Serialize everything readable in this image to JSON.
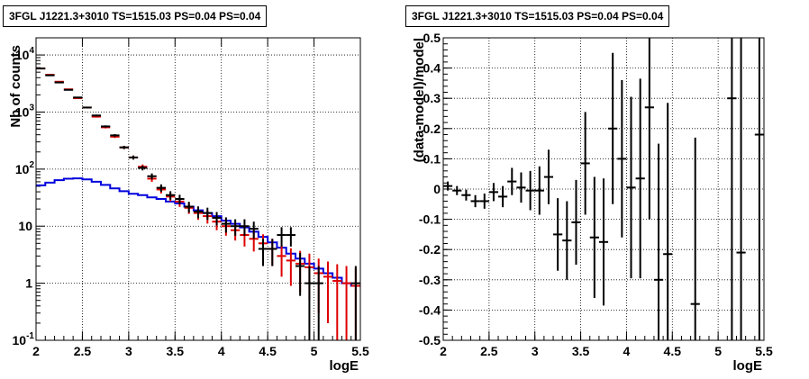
{
  "chart_data": [
    {
      "type": "line",
      "title": "3FGL J1221.3+3010 TS=1515.03 PS=0.04 PS=0.04",
      "xlabel": "logE",
      "ylabel": "Nb of counts",
      "xlim": [
        2,
        5.5
      ],
      "ylim": [
        0.1,
        20000
      ],
      "yscale": "log",
      "grid": true,
      "x_ticks": [
        "2",
        "2.5",
        "3",
        "3.5",
        "4",
        "4.5",
        "5",
        "5.5"
      ],
      "y_ticks": [
        {
          "value": 0.1,
          "label": "10",
          "sup": "-1"
        },
        {
          "value": 1,
          "label": "1",
          "sup": ""
        },
        {
          "value": 10,
          "label": "10",
          "sup": ""
        },
        {
          "value": 100,
          "label": "10",
          "sup": "2"
        },
        {
          "value": 1000,
          "label": "10",
          "sup": "3"
        },
        {
          "value": 10000,
          "label": "10",
          "sup": "4"
        }
      ],
      "bin_width": 0.1,
      "series": [
        {
          "role": "data",
          "color": "#000000",
          "x": [
            2.05,
            2.15,
            2.25,
            2.35,
            2.45,
            2.55,
            2.65,
            2.75,
            2.85,
            2.95,
            3.05,
            3.15,
            3.25,
            3.35,
            3.45,
            3.55,
            3.65,
            3.75,
            3.85,
            3.95,
            4.05,
            4.15,
            4.25,
            4.35,
            4.45,
            4.55,
            4.65,
            4.75,
            4.85,
            4.95,
            5.05,
            5.15,
            5.25,
            5.35,
            5.45
          ],
          "y": [
            5800,
            4400,
            3300,
            2450,
            1800,
            1200,
            870,
            560,
            390,
            240,
            160,
            105,
            75,
            47,
            35,
            30,
            22,
            18,
            17,
            14,
            11,
            10,
            10,
            9,
            4,
            4,
            7,
            7,
            2,
            1,
            1,
            null,
            null,
            null,
            1
          ],
          "err": [
            80,
            65,
            57,
            50,
            42,
            35,
            30,
            24,
            20,
            16,
            13,
            10,
            9,
            7,
            6,
            5.5,
            4.7,
            4.2,
            4.1,
            3.7,
            3.3,
            3.2,
            3.2,
            3,
            2,
            2,
            2.6,
            2.6,
            1.4,
            1,
            1,
            null,
            null,
            null,
            1
          ]
        },
        {
          "role": "model_counts",
          "color": "#dd0000",
          "x": [
            2.05,
            2.15,
            2.25,
            2.35,
            2.45,
            2.55,
            2.65,
            2.75,
            2.85,
            2.95,
            3.05,
            3.15,
            3.25,
            3.35,
            3.45,
            3.55,
            3.65,
            3.75,
            3.85,
            3.95,
            4.05,
            4.15,
            4.25,
            4.35,
            4.45,
            4.55,
            4.65,
            4.75,
            4.85,
            4.95,
            5.05,
            5.15,
            5.25,
            5.35,
            5.45
          ],
          "y": [
            5800,
            4500,
            3400,
            2500,
            1750,
            1200,
            830,
            540,
            370,
            240,
            160,
            110,
            68,
            44,
            33,
            27,
            21,
            17,
            15,
            12,
            10,
            8.5,
            7,
            6,
            5,
            4,
            3,
            2.5,
            2.2,
            1.9,
            1.5,
            1.3,
            1.1,
            1.0,
            0.9
          ],
          "err": [
            76,
            67,
            58,
            50,
            42,
            35,
            29,
            23,
            19,
            15.5,
            12.6,
            10.5,
            8.2,
            6.6,
            5.7,
            5.2,
            4.6,
            4.1,
            3.9,
            3.5,
            3.2,
            2.9,
            2.6,
            2.4,
            2.2,
            2,
            1.7,
            1.6,
            1.5,
            1.4,
            1.2,
            1.1,
            1.05,
            1,
            0.95
          ]
        },
        {
          "role": "model_step",
          "color": "#0000dd",
          "x": [
            2.05,
            2.15,
            2.25,
            2.35,
            2.45,
            2.55,
            2.65,
            2.75,
            2.85,
            2.95,
            3.05,
            3.15,
            3.25,
            3.35,
            3.45,
            3.55,
            3.65,
            3.75,
            3.85,
            3.95,
            4.05,
            4.15,
            4.25,
            4.35,
            4.45,
            4.55,
            4.65,
            4.75,
            4.85,
            4.95,
            5.05,
            5.15,
            5.25,
            5.35,
            5.45
          ],
          "y": [
            52,
            58,
            64,
            68,
            69,
            66,
            60,
            53,
            46,
            41,
            37,
            35,
            32,
            30,
            27,
            25,
            22,
            19,
            17,
            15,
            12.5,
            11,
            9.5,
            8,
            6.5,
            5.2,
            4.2,
            3.3,
            2.7,
            2.2,
            1.8,
            1.5,
            1.25,
            1.0,
            0.9
          ]
        }
      ]
    },
    {
      "type": "scatter",
      "title": "3FGL J1221.3+3010 TS=1515.03 PS=0.04 PS=0.04",
      "xlabel": "logE",
      "ylabel": "(data-model)/model",
      "xlim": [
        2,
        5.5
      ],
      "ylim": [
        -0.5,
        0.5
      ],
      "grid": true,
      "x_ticks": [
        "2",
        "2.5",
        "3",
        "3.5",
        "4",
        "4.5",
        "5",
        "5.5"
      ],
      "y_ticks": [
        "-0.5",
        "-0.4",
        "-0.3",
        "-0.2",
        "-0.1",
        "0",
        "0.1",
        "0.2",
        "0.3",
        "0.4",
        "0.5"
      ],
      "bin_width": 0.1,
      "series": [
        {
          "role": "residuals",
          "color": "#000000",
          "x": [
            2.05,
            2.15,
            2.25,
            2.35,
            2.45,
            2.55,
            2.65,
            2.75,
            2.85,
            2.95,
            3.05,
            3.15,
            3.25,
            3.35,
            3.45,
            3.55,
            3.65,
            3.75,
            3.85,
            3.95,
            4.05,
            4.15,
            4.25,
            4.35,
            4.45,
            4.75,
            5.15,
            5.25,
            5.45
          ],
          "y": [
            0.01,
            -0.005,
            -0.02,
            -0.04,
            -0.04,
            -0.01,
            -0.025,
            0.025,
            0.005,
            -0.005,
            -0.005,
            0.04,
            -0.15,
            -0.17,
            -0.11,
            0.085,
            -0.16,
            -0.175,
            0.2,
            0.1,
            0.005,
            0.035,
            0.27,
            -0.3,
            -0.215,
            -0.38,
            0.3,
            -0.21,
            0.18
          ],
          "err": [
            0.015,
            0.015,
            0.018,
            0.02,
            0.025,
            0.03,
            0.035,
            0.045,
            0.05,
            0.065,
            0.08,
            0.09,
            0.12,
            0.13,
            0.14,
            0.17,
            0.2,
            0.21,
            0.25,
            0.26,
            0.3,
            0.33,
            0.37,
            0.45,
            0.5,
            0.55,
            0.9,
            1.0,
            1.1
          ]
        }
      ]
    }
  ]
}
